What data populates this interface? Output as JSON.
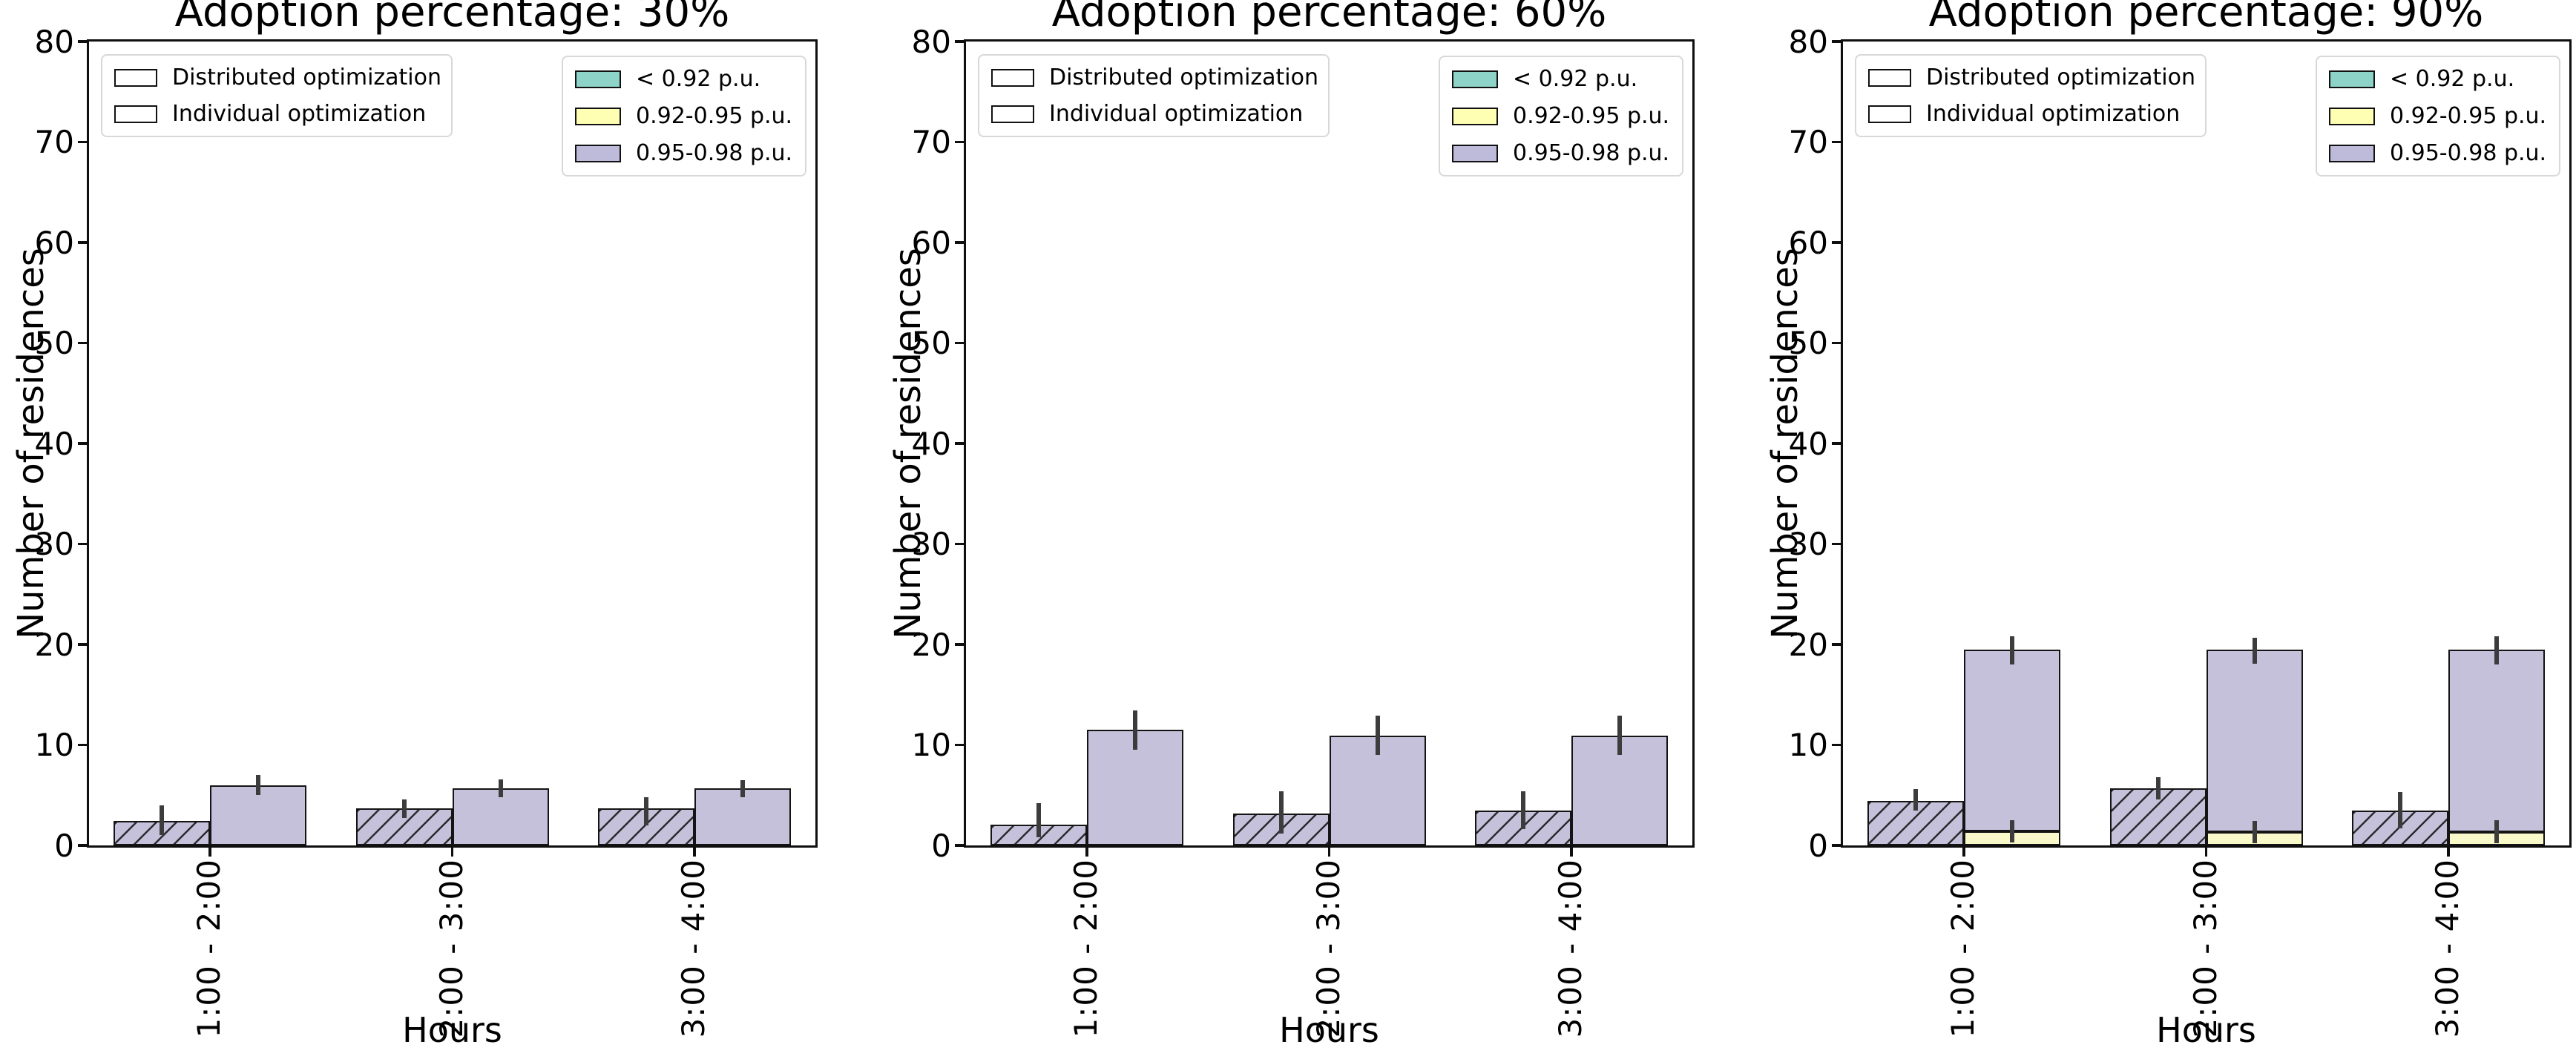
{
  "figure": {
    "ylabel": "Number of residences",
    "xlabel": "Hours",
    "categories": [
      "1:00 - 2:00",
      "2:00 - 3:00",
      "3:00 - 4:00"
    ],
    "y_ticks": [
      "0",
      "10",
      "20",
      "30",
      "40",
      "50",
      "60",
      "70",
      "80"
    ],
    "legends": {
      "patterns": [
        {
          "label": "Distributed optimization",
          "style": "hatched"
        },
        {
          "label": "Individual optimization",
          "style": "plain"
        }
      ],
      "voltage_bands": [
        {
          "label": "< 0.92 p.u.",
          "color": "#8dd3c7"
        },
        {
          "label": "0.92-0.95 p.u.",
          "color": "#ffffb3"
        },
        {
          "label": "0.95-0.98 p.u.",
          "color": "#bebada"
        }
      ]
    },
    "colors": {
      "bar_edge": "#141414",
      "error_bar": "#3c3c3c",
      "fills": {
        "< 0.92 p.u.": "#8dd3c7",
        "0.92-0.95 p.u.": "#f9f9ca",
        "0.95-0.98 p.u.": "#c5c1da"
      }
    }
  },
  "chart_data": [
    {
      "type": "bar",
      "title": "Adoption percentage: 30%",
      "adoption_percentage": 30,
      "xlabel": "Hours",
      "ylabel": "Number of residences",
      "categories": [
        "1:00 - 2:00",
        "2:00 - 3:00",
        "3:00 - 4:00"
      ],
      "ylim": [
        0,
        80
      ],
      "grid": false,
      "series": [
        {
          "name": "Distributed optimization",
          "hatched": true,
          "stacks": [
            {
              "band": "0.95-0.98 p.u.",
              "values": [
                2.4,
                3.7,
                3.7
              ]
            }
          ],
          "totals": [
            2.4,
            3.7,
            3.7
          ],
          "err_low": [
            1.0,
            2.7,
            2.0
          ],
          "err_high": [
            4.0,
            4.6,
            4.8
          ]
        },
        {
          "name": "Individual optimization",
          "hatched": false,
          "stacks": [
            {
              "band": "0.95-0.98 p.u.",
              "values": [
                6.0,
                5.7,
                5.7
              ]
            }
          ],
          "totals": [
            6.0,
            5.7,
            5.7
          ],
          "err_low": [
            5.0,
            4.8,
            4.8
          ],
          "err_high": [
            7.0,
            6.6,
            6.5
          ]
        }
      ]
    },
    {
      "type": "bar",
      "title": "Adoption percentage: 60%",
      "adoption_percentage": 60,
      "xlabel": "Hours",
      "ylabel": "Number of residences",
      "categories": [
        "1:00 - 2:00",
        "2:00 - 3:00",
        "3:00 - 4:00"
      ],
      "ylim": [
        0,
        80
      ],
      "grid": false,
      "series": [
        {
          "name": "Distributed optimization",
          "hatched": true,
          "stacks": [
            {
              "band": "0.95-0.98 p.u.",
              "values": [
                2.1,
                3.2,
                3.5
              ]
            }
          ],
          "totals": [
            2.1,
            3.2,
            3.5
          ],
          "err_low": [
            0.8,
            1.2,
            1.6
          ],
          "err_high": [
            4.2,
            5.4,
            5.4
          ]
        },
        {
          "name": "Individual optimization",
          "hatched": false,
          "stacks": [
            {
              "band": "0.95-0.98 p.u.",
              "values": [
                11.5,
                10.9,
                10.9
              ]
            }
          ],
          "totals": [
            11.5,
            10.9,
            10.9
          ],
          "err_low": [
            9.5,
            9.0,
            9.0
          ],
          "err_high": [
            13.4,
            12.9,
            12.9
          ]
        }
      ]
    },
    {
      "type": "bar",
      "title": "Adoption percentage: 90%",
      "adoption_percentage": 90,
      "xlabel": "Hours",
      "ylabel": "Number of residences",
      "categories": [
        "1:00 - 2:00",
        "2:00 - 3:00",
        "3:00 - 4:00"
      ],
      "ylim": [
        0,
        80
      ],
      "grid": false,
      "series": [
        {
          "name": "Distributed optimization",
          "hatched": true,
          "stacks": [
            {
              "band": "0.95-0.98 p.u.",
              "values": [
                4.4,
                5.7,
                3.5
              ]
            }
          ],
          "totals": [
            4.4,
            5.7,
            3.5
          ],
          "err_low": [
            3.5,
            4.6,
            1.7
          ],
          "err_high": [
            5.6,
            6.8,
            5.3
          ]
        },
        {
          "name": "Individual optimization",
          "hatched": false,
          "stacks": [
            {
              "band": "0.92-0.95 p.u.",
              "values": [
                1.4,
                1.3,
                1.3
              ],
              "err_low": [
                0.3,
                0.2,
                0.2
              ],
              "err_high": [
                2.5,
                2.4,
                2.5
              ]
            },
            {
              "band": "0.95-0.98 p.u.",
              "values": [
                18.1,
                18.2,
                18.2
              ]
            }
          ],
          "totals": [
            19.5,
            19.5,
            19.5
          ],
          "err_low": [
            18.0,
            18.1,
            18.0
          ],
          "err_high": [
            20.8,
            20.7,
            20.8
          ]
        }
      ]
    }
  ]
}
